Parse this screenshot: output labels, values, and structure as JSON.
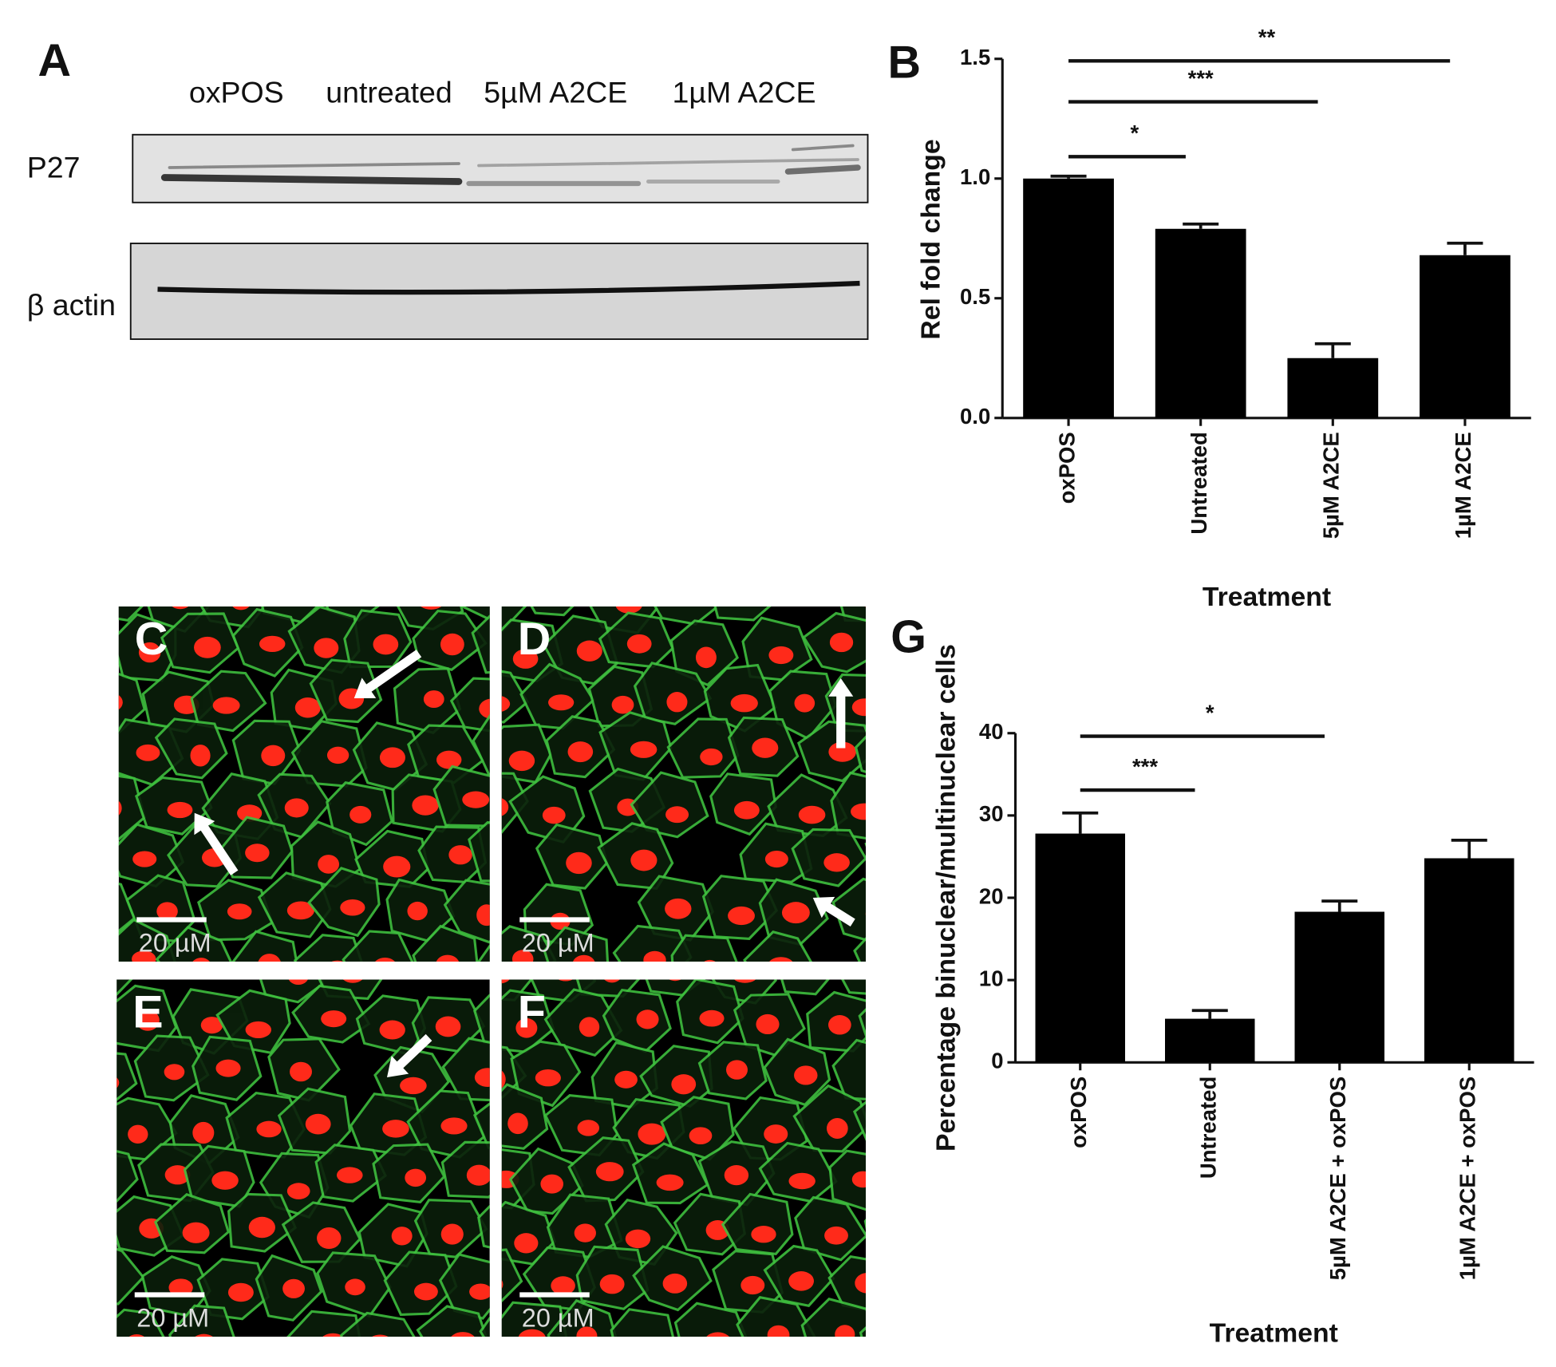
{
  "figure": {
    "panel_a": {
      "label": "A",
      "lanes": [
        "oxPOS",
        "untreated",
        "5µM A2CE",
        "1µM A2CE"
      ],
      "rows": [
        "P27",
        "β actin"
      ]
    },
    "micrographs": [
      {
        "label": "C",
        "scale": "20 µM"
      },
      {
        "label": "D",
        "scale": "20 µM"
      },
      {
        "label": "E",
        "scale": "20 µM"
      },
      {
        "label": "F",
        "scale": "20 µM"
      }
    ]
  },
  "chart_data": [
    {
      "type": "bar",
      "panel_label": "B",
      "x_label": "Treatment",
      "y_label": "Rel fold change",
      "categories": [
        "oxPOS",
        "Untreated",
        "5µM A2CE",
        "1µM A2CE"
      ],
      "values": [
        1.0,
        0.79,
        0.25,
        0.68
      ],
      "errors": [
        0.01,
        0.02,
        0.06,
        0.05
      ],
      "color": "#000000",
      "ylim": [
        0,
        1.5
      ],
      "yticks": [
        {
          "value": 0,
          "label": "0.0"
        },
        0.5,
        {
          "value": 1,
          "label": "1.0"
        },
        1.5
      ],
      "significance": [
        {
          "label": "*",
          "groups": [
            "oxPOS",
            "Untreated"
          ]
        },
        {
          "label": "***",
          "groups": [
            "oxPOS",
            "5µM A2CE"
          ]
        },
        {
          "label": "**",
          "groups": [
            "oxPOS",
            "1µM A2CE"
          ]
        }
      ]
    },
    {
      "type": "bar",
      "panel_label": "G",
      "x_label": "Treatment",
      "y_label": "Percentage binuclear/multinuclear cells",
      "categories": [
        "oxPOS",
        "Untreated",
        "5µM A2CE + oxPOS",
        "1µM A2CE + oxPOS"
      ],
      "values": [
        27.8,
        5.3,
        18.3,
        24.8
      ],
      "errors": [
        2.5,
        1.0,
        1.3,
        2.2
      ],
      "color": "#000000",
      "ylim": [
        0,
        40
      ],
      "yticks": [
        0,
        10,
        20,
        30,
        40
      ],
      "significance": [
        {
          "label": "***",
          "groups": [
            "oxPOS",
            "Untreated"
          ]
        },
        {
          "label": "*",
          "groups": [
            "oxPOS",
            "5µM A2CE + oxPOS"
          ]
        }
      ]
    }
  ]
}
